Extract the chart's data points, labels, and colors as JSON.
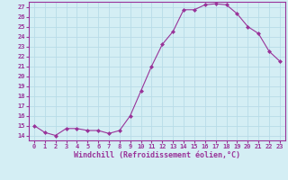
{
  "x": [
    0,
    1,
    2,
    3,
    4,
    5,
    6,
    7,
    8,
    9,
    10,
    11,
    12,
    13,
    14,
    15,
    16,
    17,
    18,
    19,
    20,
    21,
    22,
    23
  ],
  "y": [
    15.0,
    14.3,
    14.0,
    14.7,
    14.7,
    14.5,
    14.5,
    14.2,
    14.5,
    16.0,
    18.5,
    21.0,
    23.2,
    24.5,
    26.7,
    26.7,
    27.2,
    27.3,
    27.2,
    26.3,
    25.0,
    24.3,
    22.5,
    21.5
  ],
  "line_color": "#993399",
  "marker": "D",
  "markersize": 2.0,
  "linewidth": 0.8,
  "xlabel": "Windchill (Refroidissement éolien,°C)",
  "xlim": [
    -0.5,
    23.5
  ],
  "ylim": [
    13.5,
    27.5
  ],
  "yticks": [
    14,
    15,
    16,
    17,
    18,
    19,
    20,
    21,
    22,
    23,
    24,
    25,
    26,
    27
  ],
  "xticks": [
    0,
    1,
    2,
    3,
    4,
    5,
    6,
    7,
    8,
    9,
    10,
    11,
    12,
    13,
    14,
    15,
    16,
    17,
    18,
    19,
    20,
    21,
    22,
    23
  ],
  "bg_color": "#d4eef4",
  "grid_color": "#b8dce8",
  "tick_label_fontsize": 5.0,
  "xlabel_fontsize": 6.0,
  "tick_label_color": "#993399",
  "xlabel_color": "#993399",
  "spine_color": "#993399"
}
